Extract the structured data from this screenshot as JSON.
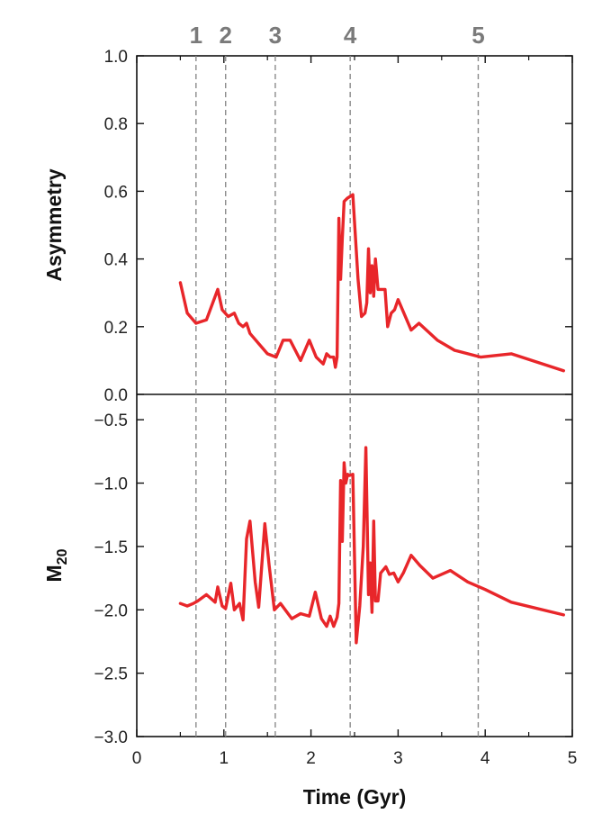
{
  "chart_data": {
    "type": "line",
    "x_axis": {
      "label": "Time (Gyr)",
      "range": [
        0,
        5
      ],
      "ticks": [
        0,
        1,
        2,
        3,
        4,
        5
      ],
      "tick_labels": [
        "0",
        "1",
        "2",
        "3",
        "4",
        "5"
      ]
    },
    "event_markers": [
      {
        "label": "1",
        "x": 0.68
      },
      {
        "label": "2",
        "x": 1.02
      },
      {
        "label": "3",
        "x": 1.59
      },
      {
        "label": "4",
        "x": 2.45
      },
      {
        "label": "5",
        "x": 3.92
      }
    ],
    "panels": [
      {
        "ylabel": "Asymmetry",
        "ylim": [
          0.0,
          1.0
        ],
        "yticks": [
          0.0,
          0.2,
          0.4,
          0.6,
          0.8,
          1.0
        ],
        "ytick_labels": [
          "0.0",
          "0.2",
          "0.4",
          "0.6",
          "0.8",
          "1.0"
        ],
        "series": [
          {
            "color": "#e8262a",
            "x": [
              0.5,
              0.58,
              0.68,
              0.8,
              0.93,
              0.98,
              1.05,
              1.12,
              1.17,
              1.22,
              1.26,
              1.3,
              1.4,
              1.5,
              1.6,
              1.68,
              1.76,
              1.88,
              1.98,
              2.06,
              2.14,
              2.18,
              2.22,
              2.26,
              2.28,
              2.3,
              2.32,
              2.34,
              2.36,
              2.38,
              2.42,
              2.48,
              2.54,
              2.58,
              2.62,
              2.64,
              2.66,
              2.68,
              2.7,
              2.72,
              2.74,
              2.77,
              2.8,
              2.85,
              2.88,
              2.92,
              2.96,
              3.0,
              3.15,
              3.24,
              3.45,
              3.65,
              3.95,
              4.3,
              4.9
            ],
            "values": [
              0.33,
              0.24,
              0.21,
              0.22,
              0.31,
              0.25,
              0.23,
              0.24,
              0.21,
              0.2,
              0.21,
              0.18,
              0.15,
              0.12,
              0.11,
              0.16,
              0.16,
              0.1,
              0.16,
              0.11,
              0.09,
              0.12,
              0.11,
              0.11,
              0.08,
              0.11,
              0.52,
              0.34,
              0.46,
              0.57,
              0.58,
              0.59,
              0.34,
              0.23,
              0.24,
              0.27,
              0.43,
              0.3,
              0.38,
              0.29,
              0.4,
              0.31,
              0.31,
              0.31,
              0.2,
              0.24,
              0.25,
              0.28,
              0.19,
              0.21,
              0.16,
              0.13,
              0.11,
              0.12,
              0.07
            ]
          }
        ]
      },
      {
        "ylabel": "M",
        "ylabel_subscript": "20",
        "ylim": [
          -3.0,
          -0.3
        ],
        "yticks": [
          -0.5,
          -1.0,
          -1.5,
          -2.0,
          -2.5,
          -3.0
        ],
        "ytick_labels": [
          "−0.5",
          "−1.0",
          "−1.5",
          "−2.0",
          "−2.5",
          "−3.0"
        ],
        "series": [
          {
            "color": "#e8262a",
            "x": [
              0.5,
              0.58,
              0.65,
              0.7,
              0.8,
              0.9,
              0.93,
              0.98,
              1.02,
              1.08,
              1.12,
              1.18,
              1.22,
              1.26,
              1.3,
              1.36,
              1.4,
              1.47,
              1.52,
              1.58,
              1.65,
              1.78,
              1.88,
              1.98,
              2.05,
              2.12,
              2.18,
              2.22,
              2.26,
              2.3,
              2.32,
              2.34,
              2.36,
              2.38,
              2.4,
              2.42,
              2.44,
              2.48,
              2.52,
              2.56,
              2.6,
              2.63,
              2.66,
              2.68,
              2.7,
              2.72,
              2.74,
              2.77,
              2.8,
              2.86,
              2.9,
              2.95,
              3.0,
              3.06,
              3.15,
              3.25,
              3.4,
              3.6,
              3.8,
              4.0,
              4.3,
              4.9
            ],
            "values": [
              -1.95,
              -1.97,
              -1.95,
              -1.93,
              -1.88,
              -1.94,
              -1.82,
              -1.97,
              -1.99,
              -1.79,
              -2.0,
              -1.95,
              -2.08,
              -1.44,
              -1.3,
              -1.78,
              -1.98,
              -1.32,
              -1.65,
              -2.0,
              -1.95,
              -2.07,
              -2.03,
              -2.05,
              -1.86,
              -2.07,
              -2.13,
              -2.05,
              -2.13,
              -2.06,
              -1.95,
              -0.98,
              -1.46,
              -0.84,
              -1.0,
              -0.93,
              -0.94,
              -0.93,
              -2.26,
              -1.97,
              -1.5,
              -0.72,
              -1.88,
              -1.63,
              -2.02,
              -1.3,
              -1.93,
              -1.93,
              -1.71,
              -1.66,
              -1.72,
              -1.71,
              -1.78,
              -1.71,
              -1.57,
              -1.65,
              -1.75,
              -1.69,
              -1.78,
              -1.84,
              -1.94,
              -2.04
            ]
          }
        ]
      }
    ]
  }
}
